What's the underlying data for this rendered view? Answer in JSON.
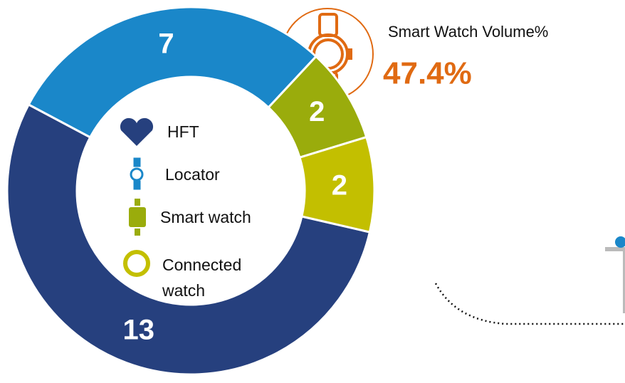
{
  "chart_data": {
    "type": "donut",
    "categories": [
      "HFT",
      "Locator",
      "Smart watch",
      "Connected watch"
    ],
    "series": [
      {
        "name": "Volume",
        "colors": [
          "#26407e",
          "#1a87c9",
          "#9aac0c",
          "#c3bf00"
        ],
        "values": [
          13,
          7,
          2,
          2
        ]
      }
    ],
    "callout": {
      "title": "Smart Watch Volume%",
      "value": "47.4%"
    }
  }
}
